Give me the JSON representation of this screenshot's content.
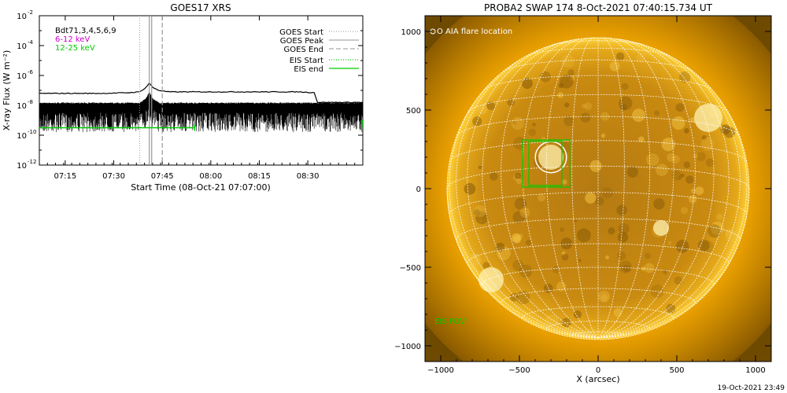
{
  "colors": {
    "background": "#ffffff",
    "axis": "#000000",
    "goes_flux": "#000000",
    "goes_markers": "#aaaaaa",
    "eis": "#00cc00",
    "band_6_12": "#cc00cc",
    "band_12_25": "#00cc00",
    "sun_core": "#c98a10",
    "sun_glow": "#ffd030",
    "grid": "#ffffff"
  },
  "chart_data": [
    {
      "type": "line",
      "title": "GOES17 XRS",
      "xlabel": "Start Time (08-Oct-21 07:07:00)",
      "ylabel": "X-ray Flux (W m⁻²)",
      "y_scale": "log",
      "ylim_exponent": [
        -12,
        -2
      ],
      "yticks": [
        {
          "base": "10",
          "exp": "-2"
        },
        {
          "base": "10",
          "exp": "-4"
        },
        {
          "base": "10",
          "exp": "-6"
        },
        {
          "base": "10",
          "exp": "-8"
        },
        {
          "base": "10",
          "exp": "-10"
        },
        {
          "base": "10",
          "exp": "-12"
        }
      ],
      "xlim_minutes": [
        0,
        100
      ],
      "xticks": [
        {
          "label": "07:15",
          "min": 8
        },
        {
          "label": "07:30",
          "min": 23
        },
        {
          "label": "07:45",
          "min": 38
        },
        {
          "label": "08:00",
          "min": 53
        },
        {
          "label": "08:15",
          "min": 68
        },
        {
          "label": "08:30",
          "min": 83
        }
      ],
      "grid": false,
      "legend_topleft": [
        {
          "label": "Bdt71,3,4,5,6,9",
          "color": "#000000"
        },
        {
          "label": "6-12 keV",
          "color": "#cc00cc"
        },
        {
          "label": "12-25 keV",
          "color": "#00cc00"
        }
      ],
      "legend_topright": [
        {
          "label": "GOES Start",
          "style": "dotted",
          "color": "#aaaaaa"
        },
        {
          "label": "GOES Peak",
          "style": "solid",
          "color": "#aaaaaa"
        },
        {
          "label": "GOES End",
          "style": "dashed",
          "color": "#aaaaaa"
        },
        {
          "label": "EIS Start",
          "style": "dotted",
          "color": "#00cc00"
        },
        {
          "label": "EIS end",
          "style": "solid",
          "color": "#00cc00"
        }
      ],
      "markers_minutes": {
        "goes_start": 31,
        "goes_peak": 34,
        "goes_end": 38
      },
      "upper_series_exp": [
        [
          0,
          -7.2
        ],
        [
          10,
          -7.2
        ],
        [
          20,
          -7.2
        ],
        [
          28,
          -7.15
        ],
        [
          31,
          -7.1
        ],
        [
          33,
          -6.8
        ],
        [
          34,
          -6.5
        ],
        [
          35,
          -6.8
        ],
        [
          37,
          -7.0
        ],
        [
          40,
          -7.1
        ],
        [
          50,
          -7.1
        ],
        [
          60,
          -7.1
        ],
        [
          70,
          -7.1
        ],
        [
          80,
          -7.1
        ],
        [
          85,
          -7.15
        ],
        [
          86,
          -7.8
        ],
        [
          100,
          -7.8
        ]
      ],
      "lower_series_exp": [
        [
          0,
          -7.9
        ],
        [
          31,
          -7.9
        ],
        [
          33,
          -7.6
        ],
        [
          34,
          -7.2
        ],
        [
          35,
          -7.6
        ],
        [
          37,
          -7.9
        ],
        [
          100,
          -7.9
        ]
      ],
      "eis_line_exp": -9.5,
      "eis_end_minute": 48
    },
    {
      "type": "image",
      "title": "PROBA2 SWAP 174  8-Oct-2021 07:40:15.734 UT",
      "xlabel": "X (arcsec)",
      "ylabel": "",
      "xlim": [
        -1100,
        1100
      ],
      "ylim": [
        -1100,
        1100
      ],
      "xticks": [
        "-1000",
        "-500",
        "0",
        "500",
        "1000"
      ],
      "yticks": [
        "1000",
        "500",
        "0",
        "-500",
        "-1000"
      ],
      "solar_radius_arcsec": 960,
      "flare_marker": {
        "x": -300,
        "y": 200,
        "r": 90
      },
      "eis_fov_boxes": [
        {
          "x0": -480,
          "y0": 10,
          "x1": -180,
          "y1": 310
        },
        {
          "x0": -440,
          "y0": 20,
          "x1": -230,
          "y1": 300
        }
      ],
      "annotations": {
        "aia_label": "O AIA flare location",
        "eis_label": "EIS FOV"
      }
    }
  ],
  "footer": {
    "timestamp": "19-Oct-2021 23:49"
  }
}
